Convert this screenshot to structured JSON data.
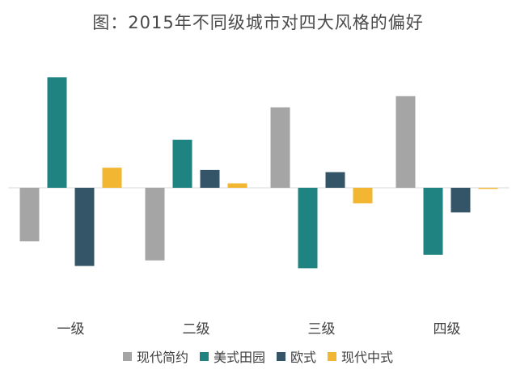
{
  "chart_data": {
    "type": "bar",
    "title": "图：2015年不同级城市对四大风格的偏好",
    "categories": [
      "一级",
      "二级",
      "三级",
      "四级"
    ],
    "series": [
      {
        "name": "现代简约",
        "color": "#a5a5a5",
        "values": [
          -0.48,
          -0.65,
          0.72,
          0.82
        ]
      },
      {
        "name": "美式田园",
        "color": "#1f8382",
        "values": [
          0.99,
          0.43,
          -0.72,
          -0.6
        ]
      },
      {
        "name": "欧式",
        "color": "#335567",
        "values": [
          -0.7,
          0.16,
          0.14,
          -0.22
        ]
      },
      {
        "name": "现代中式",
        "color": "#f2b632",
        "values": [
          0.18,
          0.04,
          -0.14,
          -0.01
        ]
      }
    ],
    "ylim": [
      -1,
      1
    ],
    "grid": false,
    "baseline": true,
    "legend_position": "bottom",
    "xlabel": "",
    "ylabel": ""
  }
}
